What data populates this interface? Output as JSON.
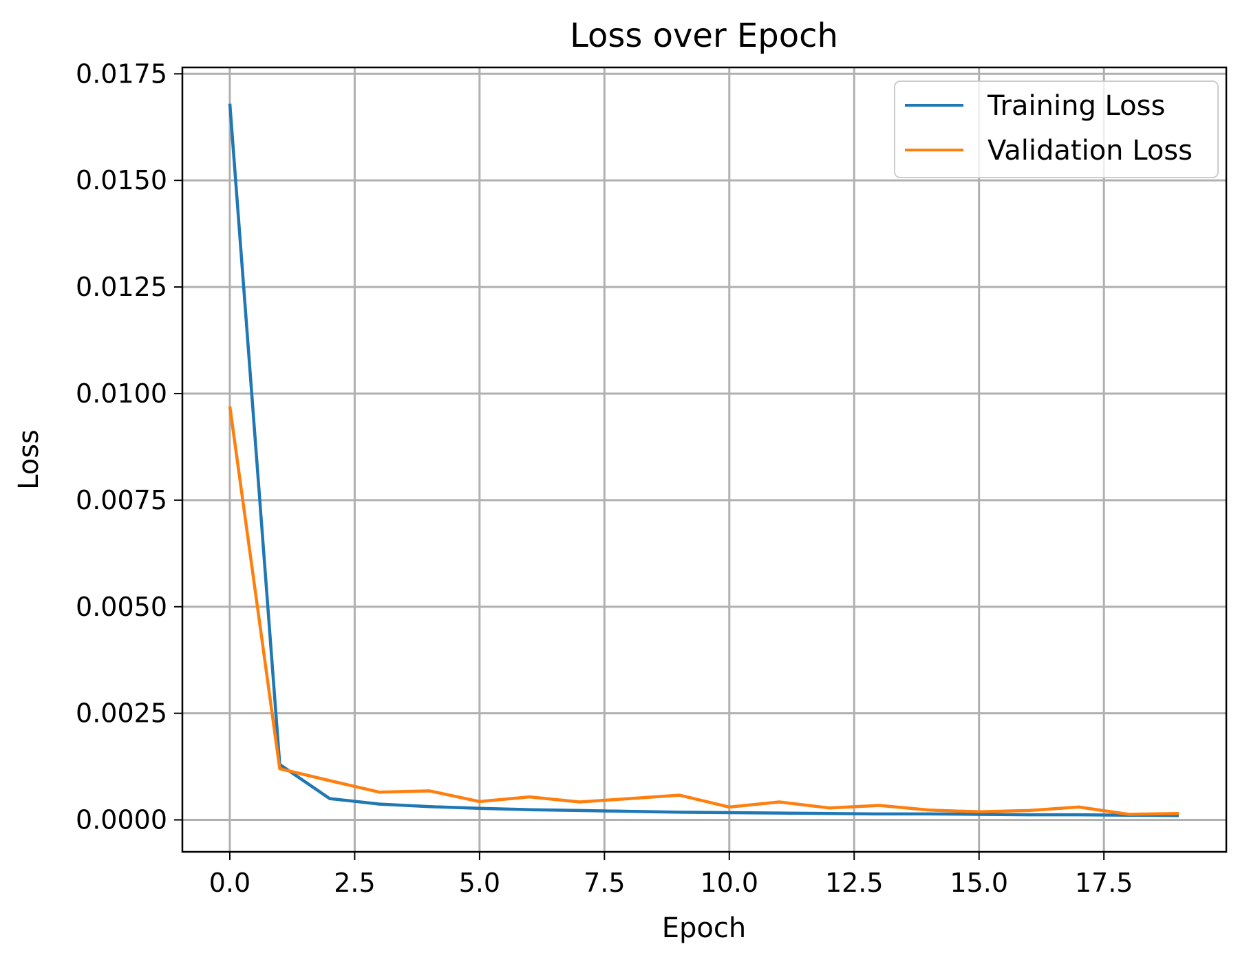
{
  "chart_data": {
    "type": "line",
    "title": "Loss over Epoch",
    "xlabel": "Epoch",
    "ylabel": "Loss",
    "xlim": [
      -0.95,
      19.95
    ],
    "ylim": [
      -0.00075,
      0.01765
    ],
    "x_ticks": [
      0.0,
      2.5,
      5.0,
      7.5,
      10.0,
      12.5,
      15.0,
      17.5
    ],
    "x_tick_labels": [
      "0.0",
      "2.5",
      "5.0",
      "7.5",
      "10.0",
      "12.5",
      "15.0",
      "17.5"
    ],
    "y_ticks": [
      0.0,
      0.0025,
      0.005,
      0.0075,
      0.01,
      0.0125,
      0.015,
      0.0175
    ],
    "y_tick_labels": [
      "0.0000",
      "0.0025",
      "0.0050",
      "0.0075",
      "0.0100",
      "0.0125",
      "0.0150",
      "0.0175"
    ],
    "grid": true,
    "legend_position": "top-right",
    "x": [
      0,
      1,
      2,
      3,
      4,
      5,
      6,
      7,
      8,
      9,
      10,
      11,
      12,
      13,
      14,
      15,
      16,
      17,
      18,
      19
    ],
    "series": [
      {
        "name": "Training Loss",
        "color": "#1f77b4",
        "values": [
          0.0168,
          0.0013,
          0.0005,
          0.00037,
          0.00031,
          0.00027,
          0.00024,
          0.00022,
          0.0002,
          0.00018,
          0.00017,
          0.00016,
          0.00015,
          0.00014,
          0.00014,
          0.00013,
          0.00012,
          0.00012,
          0.00011,
          0.0001
        ]
      },
      {
        "name": "Validation Loss",
        "color": "#ff7f0e",
        "values": [
          0.0097,
          0.0012,
          0.00092,
          0.00065,
          0.00068,
          0.00043,
          0.00054,
          0.00042,
          0.0005,
          0.00058,
          0.0003,
          0.00042,
          0.00028,
          0.00034,
          0.00023,
          0.00019,
          0.00022,
          0.0003,
          0.00013,
          0.00015
        ]
      }
    ]
  }
}
